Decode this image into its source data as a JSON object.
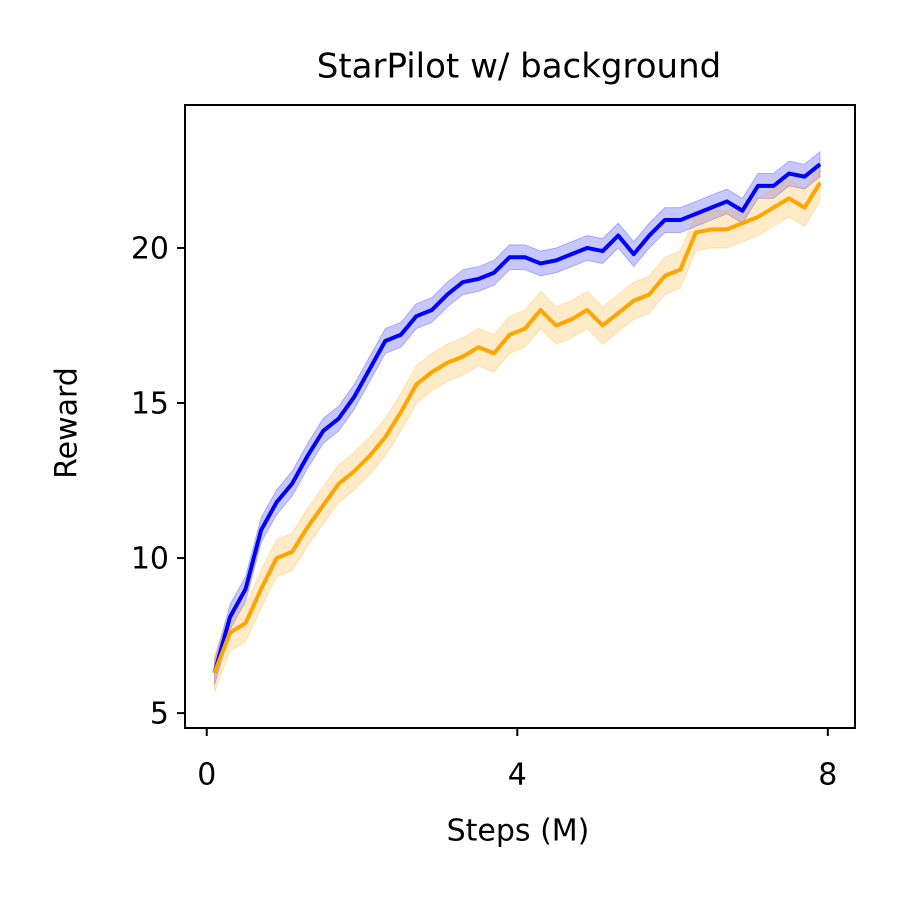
{
  "chart_data": {
    "type": "line",
    "title": "StarPilot w/ background",
    "xlabel": "Steps (M)",
    "ylabel": "Reward",
    "x": [
      0.1,
      0.3,
      0.5,
      0.7,
      0.9,
      1.1,
      1.3,
      1.5,
      1.7,
      1.9,
      2.1,
      2.3,
      2.5,
      2.7,
      2.9,
      3.1,
      3.3,
      3.5,
      3.7,
      3.9,
      4.1,
      4.3,
      4.5,
      4.7,
      4.9,
      5.1,
      5.3,
      5.5,
      5.7,
      5.9,
      6.1,
      6.3,
      6.5,
      6.7,
      6.9,
      7.1,
      7.3,
      7.5,
      7.7,
      7.9
    ],
    "series": [
      {
        "color": "#0000ff",
        "values": [
          6.3,
          8.1,
          9.0,
          10.9,
          11.8,
          12.4,
          13.3,
          14.1,
          14.5,
          15.2,
          16.1,
          17.0,
          17.2,
          17.8,
          18.0,
          18.5,
          18.9,
          19.0,
          19.2,
          19.7,
          19.7,
          19.5,
          19.6,
          19.8,
          20.0,
          19.9,
          20.4,
          19.8,
          20.4,
          20.9,
          20.9,
          21.1,
          21.3,
          21.5,
          21.2,
          22.0,
          22.0,
          22.4,
          22.3,
          22.7
        ],
        "lower": [
          5.9,
          7.7,
          8.6,
          10.5,
          11.4,
          12.0,
          12.9,
          13.7,
          14.1,
          14.8,
          15.7,
          16.6,
          16.8,
          17.4,
          17.6,
          18.1,
          18.5,
          18.6,
          18.8,
          19.3,
          19.3,
          19.1,
          19.2,
          19.4,
          19.6,
          19.5,
          20.0,
          19.4,
          20.0,
          20.5,
          20.5,
          20.7,
          20.9,
          21.1,
          20.8,
          21.6,
          21.6,
          22.0,
          21.9,
          22.3
        ],
        "upper": [
          6.7,
          8.5,
          9.4,
          11.3,
          12.2,
          12.8,
          13.7,
          14.5,
          14.9,
          15.6,
          16.5,
          17.4,
          17.6,
          18.2,
          18.4,
          18.9,
          19.3,
          19.4,
          19.6,
          20.1,
          20.1,
          19.9,
          20.0,
          20.2,
          20.4,
          20.3,
          20.8,
          20.2,
          20.8,
          21.3,
          21.3,
          21.5,
          21.7,
          21.9,
          21.6,
          22.4,
          22.4,
          22.8,
          22.7,
          23.1
        ]
      },
      {
        "color": "#ffa500",
        "values": [
          6.3,
          7.6,
          7.9,
          9.0,
          10.0,
          10.2,
          11.0,
          11.7,
          12.4,
          12.8,
          13.3,
          13.9,
          14.7,
          15.6,
          16.0,
          16.3,
          16.5,
          16.8,
          16.6,
          17.2,
          17.4,
          18.0,
          17.5,
          17.7,
          18.0,
          17.5,
          17.9,
          18.3,
          18.5,
          19.1,
          19.3,
          20.5,
          20.6,
          20.6,
          20.8,
          21.0,
          21.3,
          21.6,
          21.3,
          22.1
        ],
        "lower": [
          5.7,
          7.0,
          7.3,
          8.4,
          9.4,
          9.6,
          10.4,
          11.1,
          11.8,
          12.2,
          12.7,
          13.3,
          14.1,
          15.0,
          15.4,
          15.7,
          15.9,
          16.2,
          16.0,
          16.6,
          16.8,
          17.4,
          16.9,
          17.1,
          17.4,
          16.9,
          17.3,
          17.7,
          17.9,
          18.5,
          18.7,
          19.9,
          20.0,
          20.0,
          20.2,
          20.4,
          20.7,
          21.0,
          20.7,
          21.5
        ],
        "upper": [
          6.9,
          8.2,
          8.5,
          9.6,
          10.6,
          10.8,
          11.6,
          12.3,
          13.0,
          13.4,
          13.9,
          14.5,
          15.3,
          16.2,
          16.6,
          16.9,
          17.1,
          17.4,
          17.2,
          17.8,
          18.0,
          18.6,
          18.1,
          18.3,
          18.6,
          18.1,
          18.5,
          18.9,
          19.1,
          19.7,
          19.9,
          21.1,
          21.2,
          21.2,
          21.4,
          21.6,
          21.9,
          22.2,
          21.9,
          22.7
        ]
      }
    ],
    "xlim": [
      -0.28,
      8.35
    ],
    "ylim": [
      4.52,
      24.61
    ],
    "xticks": [
      0,
      4,
      8
    ],
    "yticks": [
      5,
      10,
      15,
      20
    ],
    "grid": false
  }
}
